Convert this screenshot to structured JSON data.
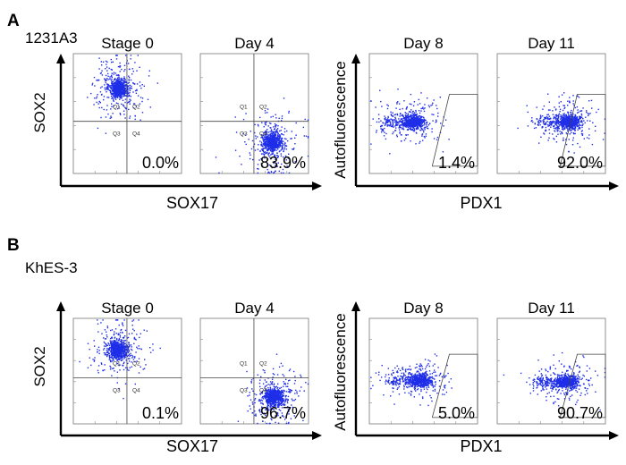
{
  "figure": {
    "panels": [
      {
        "letter": "A",
        "cell_line": "1231A3",
        "left_group": {
          "xlabel": "SOX17",
          "ylabel": "SOX2"
        },
        "right_group": {
          "xlabel": "PDX1",
          "ylabel": "Autofluorescence"
        }
      },
      {
        "letter": "B",
        "cell_line": "KhES-3",
        "left_group": {
          "xlabel": "SOX17",
          "ylabel": "SOX2"
        },
        "right_group": {
          "xlabel": "PDX1",
          "ylabel": "Autofluorescence"
        }
      }
    ],
    "quadrant_labels": [
      "Q1",
      "Q2",
      "Q3",
      "Q4"
    ]
  },
  "colors": {
    "dots": "#1f2ee8",
    "gate": "#444444",
    "axis": "#000000"
  },
  "chart_data": [
    {
      "type": "scatter",
      "panel": "A",
      "cell_line": "1231A3",
      "title": "Stage 0",
      "xlabel": "SOX17",
      "ylabel": "SOX2",
      "gate": "quadrant",
      "gate_pct": "0.0%",
      "gated_fraction": 0.0,
      "axis_scale": "log",
      "xlim": [
        1,
        100000
      ],
      "ylim": [
        1,
        100000
      ],
      "population": {
        "x": 120,
        "y": 4000
      }
    },
    {
      "type": "scatter",
      "panel": "A",
      "cell_line": "1231A3",
      "title": "Day 4",
      "xlabel": "SOX17",
      "ylabel": "SOX2",
      "gate": "quadrant",
      "gate_pct": "83.9%",
      "gated_fraction": 0.839,
      "axis_scale": "log",
      "xlim": [
        1,
        100000
      ],
      "ylim": [
        1,
        100000
      ],
      "population": {
        "x": 2000,
        "y": 20
      }
    },
    {
      "type": "scatter",
      "panel": "A",
      "cell_line": "1231A3",
      "title": "Day 8",
      "xlabel": "PDX1",
      "ylabel": "Autofluorescence",
      "gate": "polygon",
      "gate_pct": "1.4%",
      "gated_fraction": 0.014,
      "axis_scale": "log",
      "xlim": [
        1,
        100000
      ],
      "ylim": [
        1,
        100000
      ],
      "population": {
        "x": 100,
        "y": 150
      }
    },
    {
      "type": "scatter",
      "panel": "A",
      "cell_line": "1231A3",
      "title": "Day 11",
      "xlabel": "PDX1",
      "ylabel": "Autofluorescence",
      "gate": "polygon",
      "gate_pct": "92.0%",
      "gated_fraction": 0.92,
      "axis_scale": "log",
      "xlim": [
        1,
        100000
      ],
      "ylim": [
        1,
        100000
      ],
      "population": {
        "x": 2000,
        "y": 150
      }
    },
    {
      "type": "scatter",
      "panel": "B",
      "cell_line": "KhES-3",
      "title": "Stage 0",
      "xlabel": "SOX17",
      "ylabel": "SOX2",
      "gate": "quadrant",
      "gate_pct": "0.1%",
      "gated_fraction": 0.001,
      "axis_scale": "log",
      "xlim": [
        1,
        100000
      ],
      "ylim": [
        1,
        100000
      ],
      "population": {
        "x": 110,
        "y": 3500
      }
    },
    {
      "type": "scatter",
      "panel": "B",
      "cell_line": "KhES-3",
      "title": "Day 4",
      "xlabel": "SOX17",
      "ylabel": "SOX2",
      "gate": "quadrant",
      "gate_pct": "96.7%",
      "gated_fraction": 0.967,
      "axis_scale": "log",
      "xlim": [
        1,
        100000
      ],
      "ylim": [
        1,
        100000
      ],
      "population": {
        "x": 2500,
        "y": 20
      }
    },
    {
      "type": "scatter",
      "panel": "B",
      "cell_line": "KhES-3",
      "title": "Day 8",
      "xlabel": "PDX1",
      "ylabel": "Autofluorescence",
      "gate": "polygon",
      "gate_pct": "5.0%",
      "gated_fraction": 0.05,
      "axis_scale": "log",
      "xlim": [
        1,
        100000
      ],
      "ylim": [
        1,
        100000
      ],
      "population": {
        "x": 200,
        "y": 120
      }
    },
    {
      "type": "scatter",
      "panel": "B",
      "cell_line": "KhES-3",
      "title": "Day 11",
      "xlabel": "PDX1",
      "ylabel": "Autofluorescence",
      "gate": "polygon",
      "gate_pct": "90.7%",
      "gated_fraction": 0.907,
      "axis_scale": "log",
      "xlim": [
        1,
        100000
      ],
      "ylim": [
        1,
        100000
      ],
      "population": {
        "x": 1500,
        "y": 100
      }
    }
  ]
}
